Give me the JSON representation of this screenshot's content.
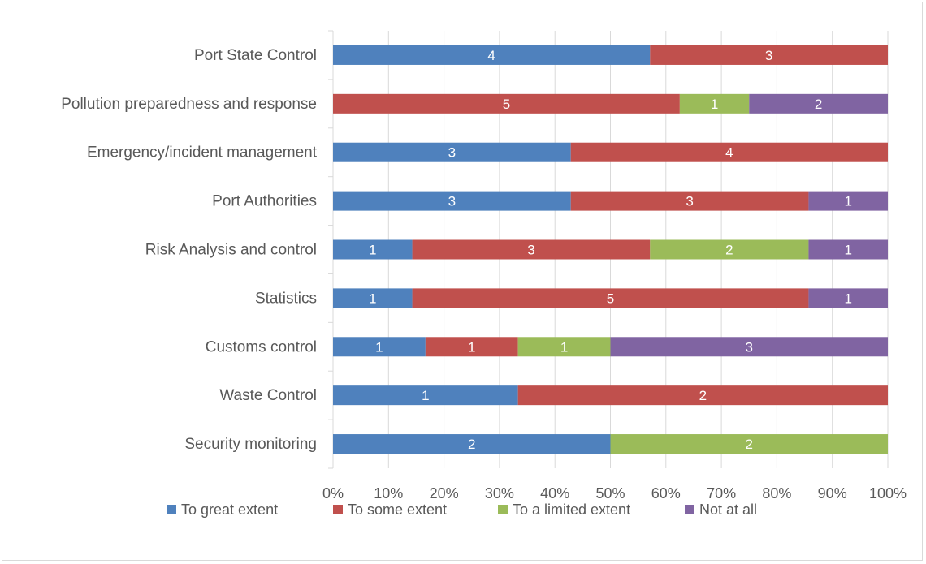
{
  "chart_data": {
    "type": "bar",
    "orientation": "horizontal",
    "stacking": "percent",
    "categories": [
      "Port State Control",
      "Pollution preparedness and response",
      "Emergency/incident management",
      "Port Authorities",
      "Risk Analysis and control",
      "Statistics",
      "Customs control",
      "Waste Control",
      "Security monitoring"
    ],
    "series": [
      {
        "name": "To great extent",
        "color": "#4f81bd",
        "values": [
          4,
          0,
          3,
          3,
          1,
          1,
          1,
          1,
          2
        ]
      },
      {
        "name": "To some extent",
        "color": "#c0504d",
        "values": [
          3,
          5,
          4,
          3,
          3,
          5,
          1,
          2,
          0
        ]
      },
      {
        "name": "To a limited extent",
        "color": "#9bbb59",
        "values": [
          0,
          1,
          0,
          0,
          2,
          0,
          1,
          0,
          2
        ]
      },
      {
        "name": "Not at all",
        "color": "#8064a2",
        "values": [
          0,
          2,
          0,
          1,
          1,
          1,
          3,
          0,
          0
        ]
      }
    ],
    "x_ticks": [
      "0%",
      "10%",
      "20%",
      "30%",
      "40%",
      "50%",
      "60%",
      "70%",
      "80%",
      "90%",
      "100%"
    ],
    "xlim": [
      0,
      100
    ],
    "grid": true,
    "legend_position": "bottom",
    "title": "",
    "xlabel": "",
    "ylabel": ""
  }
}
